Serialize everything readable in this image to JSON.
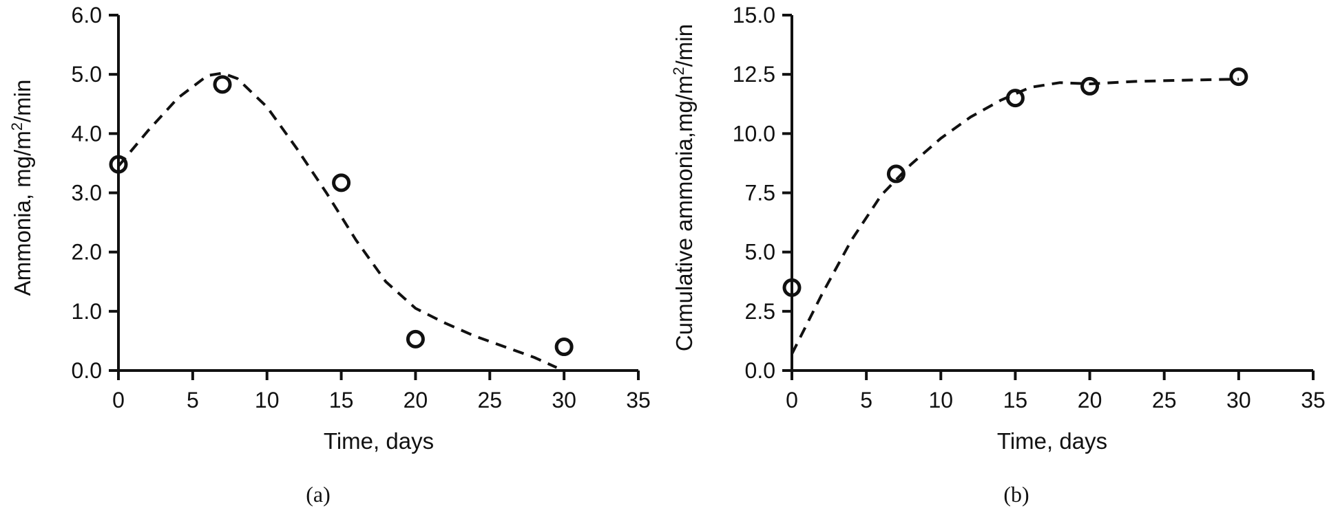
{
  "chart_data": [
    {
      "type": "scatter",
      "panel_label": "(a)",
      "xlabel": "Time, days",
      "ylabel_main": "Ammonia, mg/m",
      "ylabel_sup": "2",
      "ylabel_tail": "/min",
      "xlim": [
        0,
        35
      ],
      "ylim": [
        0,
        6
      ],
      "x_ticks": [
        0,
        5,
        10,
        15,
        20,
        25,
        30,
        35
      ],
      "x_tick_labels": [
        "0",
        "5",
        "10",
        "15",
        "20",
        "25",
        "30",
        "35"
      ],
      "y_ticks": [
        0,
        1,
        2,
        3,
        4,
        5,
        6
      ],
      "y_tick_labels": [
        "0.0",
        "1.0",
        "2.0",
        "3.0",
        "4.0",
        "5.0",
        "6.0"
      ],
      "grid": false,
      "series": [
        {
          "points": [
            {
              "x": 0,
              "y": 3.48
            },
            {
              "x": 7,
              "y": 4.83
            },
            {
              "x": 15,
              "y": 3.17
            },
            {
              "x": 20,
              "y": 0.53
            },
            {
              "x": 30,
              "y": 0.4
            }
          ],
          "marker": "open-circle",
          "color": "#111111"
        }
      ],
      "trendline": {
        "style": "dashed",
        "color": "#111111",
        "points": [
          {
            "x": 0,
            "y": 3.45
          },
          {
            "x": 2,
            "y": 4.05
          },
          {
            "x": 4,
            "y": 4.6
          },
          {
            "x": 6,
            "y": 4.98
          },
          {
            "x": 7,
            "y": 5.02
          },
          {
            "x": 8,
            "y": 4.93
          },
          {
            "x": 10,
            "y": 4.45
          },
          {
            "x": 12,
            "y": 3.75
          },
          {
            "x": 14,
            "y": 3.0
          },
          {
            "x": 16,
            "y": 2.2
          },
          {
            "x": 18,
            "y": 1.5
          },
          {
            "x": 20,
            "y": 1.05
          },
          {
            "x": 22,
            "y": 0.8
          },
          {
            "x": 24,
            "y": 0.58
          },
          {
            "x": 26,
            "y": 0.4
          },
          {
            "x": 28,
            "y": 0.22
          },
          {
            "x": 29.5,
            "y": 0.05
          }
        ]
      }
    },
    {
      "type": "scatter",
      "panel_label": "(b)",
      "xlabel": "Time, days",
      "ylabel_main": "Cumulative ammonia,mg/m",
      "ylabel_sup": "2",
      "ylabel_tail": "/min",
      "xlim": [
        0,
        35
      ],
      "ylim": [
        0,
        15
      ],
      "x_ticks": [
        0,
        5,
        10,
        15,
        20,
        25,
        30,
        35
      ],
      "x_tick_labels": [
        "0",
        "5",
        "10",
        "15",
        "20",
        "25",
        "30",
        "35"
      ],
      "y_ticks": [
        0,
        2.5,
        5,
        7.5,
        10,
        12.5,
        15
      ],
      "y_tick_labels": [
        "0.0",
        "2.5",
        "5.0",
        "7.5",
        "10.0",
        "12.5",
        "15.0"
      ],
      "grid": false,
      "series": [
        {
          "points": [
            {
              "x": 0,
              "y": 3.5
            },
            {
              "x": 7,
              "y": 8.3
            },
            {
              "x": 15,
              "y": 11.5
            },
            {
              "x": 20,
              "y": 12.0
            },
            {
              "x": 30,
              "y": 12.4
            }
          ],
          "marker": "open-circle",
          "color": "#111111"
        }
      ],
      "trendline": {
        "style": "dashed",
        "color": "#111111",
        "points": [
          {
            "x": 0,
            "y": 0.7
          },
          {
            "x": 2,
            "y": 3.2
          },
          {
            "x": 4,
            "y": 5.5
          },
          {
            "x": 6,
            "y": 7.4
          },
          {
            "x": 8,
            "y": 8.7
          },
          {
            "x": 10,
            "y": 9.8
          },
          {
            "x": 12,
            "y": 10.7
          },
          {
            "x": 14,
            "y": 11.4
          },
          {
            "x": 16,
            "y": 11.95
          },
          {
            "x": 18,
            "y": 12.15
          },
          {
            "x": 20,
            "y": 12.1
          },
          {
            "x": 23,
            "y": 12.2
          },
          {
            "x": 26,
            "y": 12.25
          },
          {
            "x": 30,
            "y": 12.3
          }
        ]
      }
    }
  ]
}
